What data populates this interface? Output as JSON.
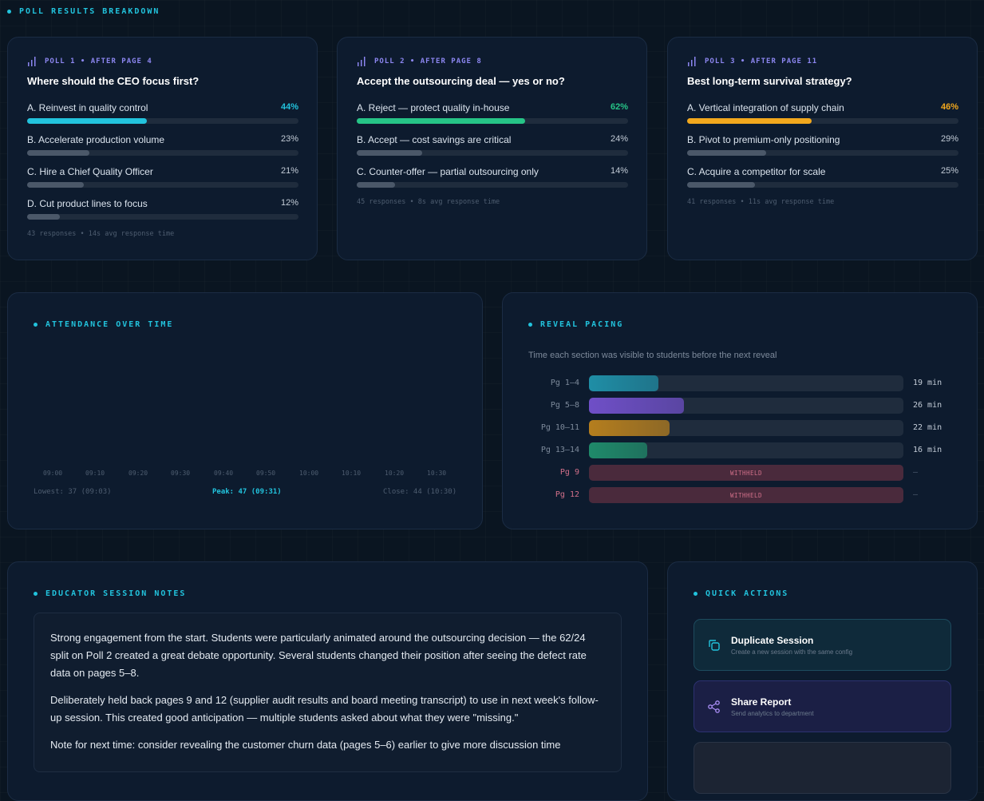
{
  "page": {
    "section_title": "POLL RESULTS BREAKDOWN"
  },
  "polls": [
    {
      "tag": "POLL 1 • AFTER PAGE 4",
      "question": "Where should the CEO focus first?",
      "accent": "#22c3dd",
      "options": [
        {
          "label": "A. Reinvest in quality control",
          "pct": "44%",
          "value": 44
        },
        {
          "label": "B. Accelerate production volume",
          "pct": "23%",
          "value": 23
        },
        {
          "label": "C. Hire a Chief Quality Officer",
          "pct": "21%",
          "value": 21
        },
        {
          "label": "D. Cut product lines to focus",
          "pct": "12%",
          "value": 12
        }
      ],
      "footer": "43 responses • 14s avg response time"
    },
    {
      "tag": "POLL 2 • AFTER PAGE 8",
      "question": "Accept the outsourcing deal — yes or no?",
      "accent": "#26c487",
      "options": [
        {
          "label": "A. Reject — protect quality in-house",
          "pct": "62%",
          "value": 62
        },
        {
          "label": "B. Accept — cost savings are critical",
          "pct": "24%",
          "value": 24
        },
        {
          "label": "C. Counter-offer — partial outsourcing only",
          "pct": "14%",
          "value": 14
        }
      ],
      "footer": "45 responses • 8s avg response time"
    },
    {
      "tag": "POLL 3 • AFTER PAGE 11",
      "question": "Best long-term survival strategy?",
      "accent": "#f2a81d",
      "options": [
        {
          "label": "A. Vertical integration of supply chain",
          "pct": "46%",
          "value": 46
        },
        {
          "label": "B. Pivot to premium-only positioning",
          "pct": "29%",
          "value": 29
        },
        {
          "label": "C. Acquire a competitor for scale",
          "pct": "25%",
          "value": 25
        }
      ],
      "footer": "41 responses • 11s avg response time"
    }
  ],
  "attendance": {
    "title": "ATTENDANCE OVER TIME",
    "ticks": [
      "09:00",
      "09:10",
      "09:20",
      "09:30",
      "09:40",
      "09:50",
      "10:00",
      "10:10",
      "10:20",
      "10:30"
    ],
    "lowest": "Lowest: 37 (09:03)",
    "peak": "Peak: 47 (09:31)",
    "close": "Close: 44 (10:30)"
  },
  "pacing": {
    "title": "REVEAL PACING",
    "subtitle": "Time each section was visible to students before the next reveal",
    "rows": [
      {
        "label": "Pg 1–4",
        "value": "19 min",
        "minutes": 19,
        "color": "#1f8ea6"
      },
      {
        "label": "Pg 5–8",
        "value": "26 min",
        "minutes": 26,
        "color": "#6f4fc7"
      },
      {
        "label": "Pg 10–11",
        "value": "22 min",
        "minutes": 22,
        "color": "#b57e1e"
      },
      {
        "label": "Pg 13–14",
        "value": "16 min",
        "minutes": 16,
        "color": "#1f8a6a"
      },
      {
        "label": "Pg 9",
        "value": "—",
        "withheld": "WITHHELD"
      },
      {
        "label": "Pg 12",
        "value": "—",
        "withheld": "WITHHELD"
      }
    ],
    "scale_max": 86
  },
  "notes": {
    "title": "EDUCATOR SESSION NOTES",
    "paragraphs": [
      "Strong engagement from the start. Students were particularly animated around the outsourcing decision — the 62/24 split on Poll 2 created a great debate opportunity. Several students changed their position after seeing the defect rate data on pages 5–8.",
      "Deliberately held back pages 9 and 12 (supplier audit results and board meeting transcript) to use in next week's follow-up session. This created good anticipation — multiple students asked about what they were \"missing.\"",
      "Note for next time: consider revealing the customer churn data (pages 5–6) earlier to give more discussion time"
    ]
  },
  "quick_actions": {
    "title": "QUICK ACTIONS",
    "items": [
      {
        "title": "Duplicate Session",
        "subtitle": "Create a new session with the same config",
        "icon": "copy-icon"
      },
      {
        "title": "Share Report",
        "subtitle": "Send analytics to department",
        "icon": "share-icon"
      }
    ]
  }
}
